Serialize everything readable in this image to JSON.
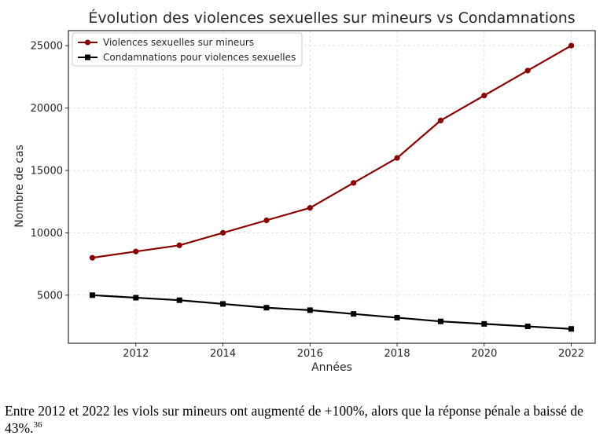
{
  "chart_data": {
    "type": "line",
    "title": "Évolution des violences sexuelles sur mineurs vs Condamnations",
    "xlabel": "Années",
    "ylabel": "Nombre de cas",
    "x": [
      2011,
      2012,
      2013,
      2014,
      2015,
      2016,
      2017,
      2018,
      2019,
      2020,
      2021,
      2022
    ],
    "xlim": [
      2010.45,
      2022.55
    ],
    "ylim": [
      1150,
      26200
    ],
    "xticks": [
      "2012",
      "2014",
      "2016",
      "2018",
      "2020",
      "2022"
    ],
    "yticks": [
      "5000",
      "10000",
      "15000",
      "20000",
      "25000"
    ],
    "grid": true,
    "legend_position": "top-left",
    "series": [
      {
        "name": "Violences sexuelles sur mineurs",
        "color": "#8b0000",
        "marker": "circle",
        "values": [
          8000,
          8500,
          9000,
          10000,
          11000,
          12000,
          14000,
          16000,
          19000,
          21000,
          23000,
          25000
        ]
      },
      {
        "name": "Condamnations pour violences sexuelles",
        "color": "#000000",
        "marker": "square",
        "values": [
          5000,
          4800,
          4600,
          4300,
          4000,
          3800,
          3500,
          3200,
          2900,
          2700,
          2500,
          2300
        ]
      }
    ]
  },
  "caption": {
    "text": "Entre 2012 et 2022 les viols sur mineurs ont augmenté de +100%, alors que la réponse pénale a baissé de 43%.",
    "footnote": "36"
  }
}
